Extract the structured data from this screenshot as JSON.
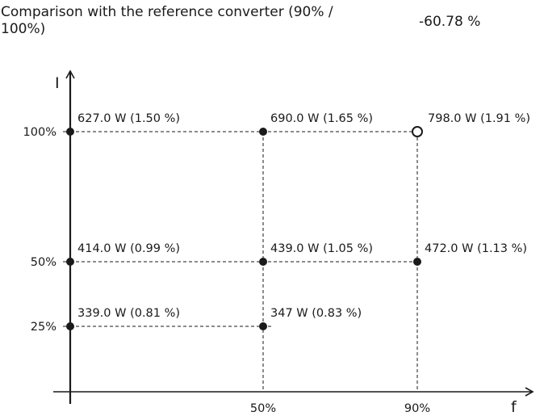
{
  "comparison": {
    "label": "Comparison with the reference converter (90% / 100%)",
    "value": "-60.78 %"
  },
  "axes": {
    "y_name": "I",
    "x_name": "f",
    "y_ticks": [
      "100%",
      "50%",
      "25%"
    ],
    "x_ticks": [
      "50%",
      "90%"
    ]
  },
  "points": [
    {
      "f": 0,
      "i": 100,
      "label": "627.0 W (1.50 %)",
      "marker": "filled"
    },
    {
      "f": 50,
      "i": 100,
      "label": "690.0 W (1.65 %)",
      "marker": "filled"
    },
    {
      "f": 90,
      "i": 100,
      "label": "798.0 W (1.91 %)",
      "marker": "open"
    },
    {
      "f": 0,
      "i": 50,
      "label": "414.0 W (0.99 %)",
      "marker": "filled"
    },
    {
      "f": 50,
      "i": 50,
      "label": "439.0 W (1.05 %)",
      "marker": "filled"
    },
    {
      "f": 90,
      "i": 50,
      "label": "472.0 W (1.13 %)",
      "marker": "filled"
    },
    {
      "f": 0,
      "i": 25,
      "label": "339.0 W (0.81 %)",
      "marker": "filled"
    },
    {
      "f": 50,
      "i": 25,
      "label": "347 W (0.83 %)",
      "marker": "filled"
    }
  ]
}
